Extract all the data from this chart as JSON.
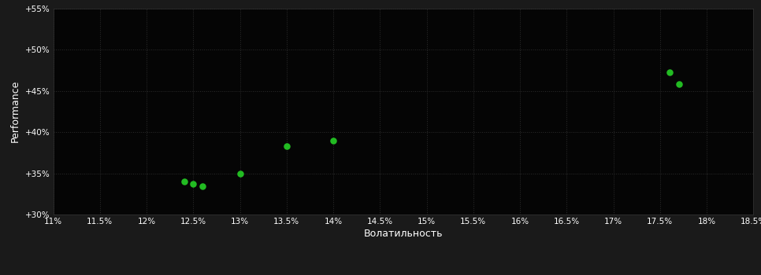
{
  "background_color": "#1a1a1a",
  "plot_bg_color": "#050505",
  "grid_color": "#2d2d2d",
  "point_color": "#22bb22",
  "xlabel": "Волатильность",
  "ylabel": "Performance",
  "points": [
    [
      0.124,
      0.34
    ],
    [
      0.125,
      0.337
    ],
    [
      0.126,
      0.334
    ],
    [
      0.13,
      0.35
    ],
    [
      0.135,
      0.383
    ],
    [
      0.14,
      0.39
    ],
    [
      0.176,
      0.472
    ],
    [
      0.177,
      0.458
    ]
  ],
  "xlim": [
    0.11,
    0.185
  ],
  "ylim": [
    0.3,
    0.55
  ],
  "xticks": [
    0.11,
    0.115,
    0.12,
    0.125,
    0.13,
    0.135,
    0.14,
    0.145,
    0.15,
    0.155,
    0.16,
    0.165,
    0.17,
    0.175,
    0.18,
    0.185
  ],
  "yticks": [
    0.3,
    0.35,
    0.4,
    0.45,
    0.5,
    0.55
  ],
  "xtick_labels": [
    "11%",
    "11.5%",
    "12%",
    "12.5%",
    "13%",
    "13.5%",
    "14%",
    "14.5%",
    "15%",
    "15.5%",
    "16%",
    "16.5%",
    "17%",
    "17.5%",
    "18%",
    "18.5%"
  ],
  "ytick_labels": [
    "+30%",
    "+35%",
    "+40%",
    "+45%",
    "+50%",
    "+55%"
  ],
  "text_color": "#ffffff",
  "tick_color": "#ffffff",
  "marker_size": 5,
  "figsize": [
    9.66,
    3.5
  ],
  "dpi": 100
}
